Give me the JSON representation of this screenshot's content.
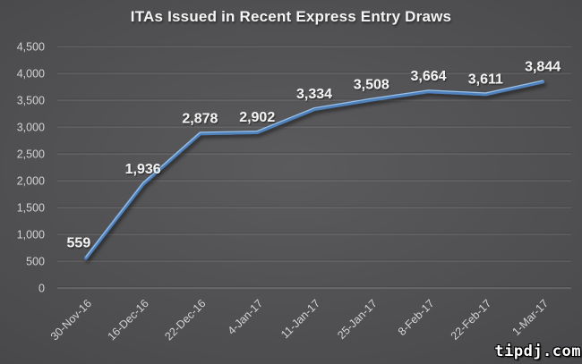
{
  "watermark": "tipdj.com",
  "chart_data": {
    "type": "line",
    "title": "ITAs Issued in Recent Express Entry Draws",
    "categories": [
      "30-Nov-16",
      "16-Dec-16",
      "22-Dec-16",
      "4-Jan-17",
      "11-Jan-17",
      "25-Jan-17",
      "8-Feb-17",
      "22-Feb-17",
      "1-Mar-17"
    ],
    "values": [
      559,
      1936,
      2878,
      2902,
      3334,
      3508,
      3664,
      3611,
      3844
    ],
    "point_labels": [
      "559",
      "1,936",
      "2,878",
      "2,902",
      "3,334",
      "3,508",
      "3,664",
      "3,611",
      "3,844"
    ],
    "xlabel": "",
    "ylabel": "",
    "ylim": [
      0,
      4500
    ],
    "y_ticks": [
      0,
      500,
      1000,
      1500,
      2000,
      2500,
      3000,
      3500,
      4000,
      4500
    ],
    "y_tick_labels": [
      "0",
      "500",
      "1,000",
      "1,500",
      "2,000",
      "2,500",
      "3,000",
      "3,500",
      "4,000",
      "4,500"
    ],
    "grid": "horizontal",
    "legend": "none",
    "x_label_rotation_deg": -45,
    "colors": {
      "line": "#4f81bd",
      "line_highlight": "#a9cdec",
      "data_label": "#f2f2f2",
      "axis_tick_label": "#d3d3d3",
      "title": "#f4f4f4",
      "gridline": "#dddddd",
      "background_center": "#5b5b5d",
      "background_edge": "#3a3a3c"
    }
  }
}
